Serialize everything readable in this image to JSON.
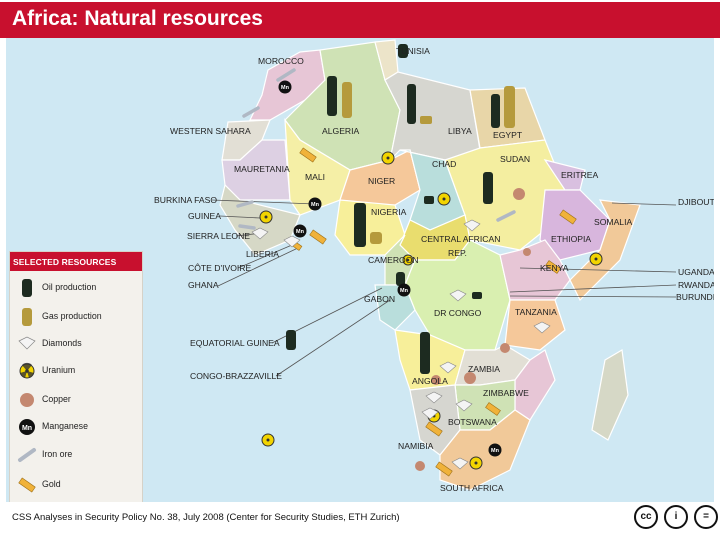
{
  "title": "Africa: Natural resources",
  "legend": {
    "heading": "SELECTED RESOURCES",
    "items": [
      {
        "label": "Oil production",
        "icon": "oil-barrel-icon"
      },
      {
        "label": "Gas production",
        "icon": "gas-barrel-icon"
      },
      {
        "label": "Diamonds",
        "icon": "diamond-icon"
      },
      {
        "label": "Uranium",
        "icon": "uranium-icon"
      },
      {
        "label": "Copper",
        "icon": "copper-icon"
      },
      {
        "label": "Manganese",
        "icon": "manganese-icon",
        "badge": "Mn"
      },
      {
        "label": "Iron ore",
        "icon": "iron-ore-icon"
      },
      {
        "label": "Gold",
        "icon": "gold-bar-icon"
      }
    ]
  },
  "countries": {
    "tunisia": "TUNISIA",
    "morocco": "MOROCCO",
    "western_sahara": "WESTERN SAHARA",
    "algeria": "ALGERIA",
    "libya": "LIBYA",
    "egypt": "EGYPT",
    "mauretania": "MAURETANIA",
    "mali": "MALI",
    "niger": "NIGER",
    "chad": "CHAD",
    "sudan": "SUDAN",
    "eritrea": "ERITREA",
    "djibouti": "DJIBOUTI",
    "burkina_faso": "BURKINA FASO",
    "guinea": "GUINEA",
    "sierra_leone": "SIERRA LEONE",
    "liberia": "LIBERIA",
    "cote_divoire": "CÔTE D'IVOIRE",
    "ghana": "GHANA",
    "nigeria": "NIGERIA",
    "car_line1": "CENTRAL AFRICAN",
    "car_line2": "REP.",
    "cameroon": "CAMEROON",
    "somalia": "SOMALIA",
    "ethiopia": "ETHIOPIA",
    "kenya": "KENYA",
    "uganda": "UGANDA",
    "rwanda": "RWANDA",
    "burundi": "BURUNDI",
    "gabon": "GABON",
    "dr_congo": "DR CONGO",
    "tanzania": "TANZANIA",
    "equatorial_guinea": "EQUATORIAL GUINEA",
    "congo_brazzaville": "CONGO-BRAZZAVILLE",
    "angola": "ANGOLA",
    "zambia": "ZAMBIA",
    "zimbabwe": "ZIMBABWE",
    "botswana": "BOTSWANA",
    "namibia": "NAMIBIA",
    "south_africa": "SOUTH AFRICA"
  },
  "manganese_badge": "Mn",
  "footer": "CSS Analyses in Security Policy No. 38, July 2008 (Center for Security Studies, ETH Zurich)",
  "license_icons": [
    {
      "icon": "cc-icon",
      "text": "cc"
    },
    {
      "icon": "attribution-icon",
      "text": "i"
    },
    {
      "icon": "no-derivatives-icon",
      "text": "="
    }
  ],
  "colors": {
    "header": "#c8102e",
    "sea": "#cfe8f3",
    "oil": "#1d2b20",
    "gas": "#b59a3c",
    "copper": "#c48870",
    "uranium": "#f2d400",
    "gold": "#f0b23a"
  }
}
